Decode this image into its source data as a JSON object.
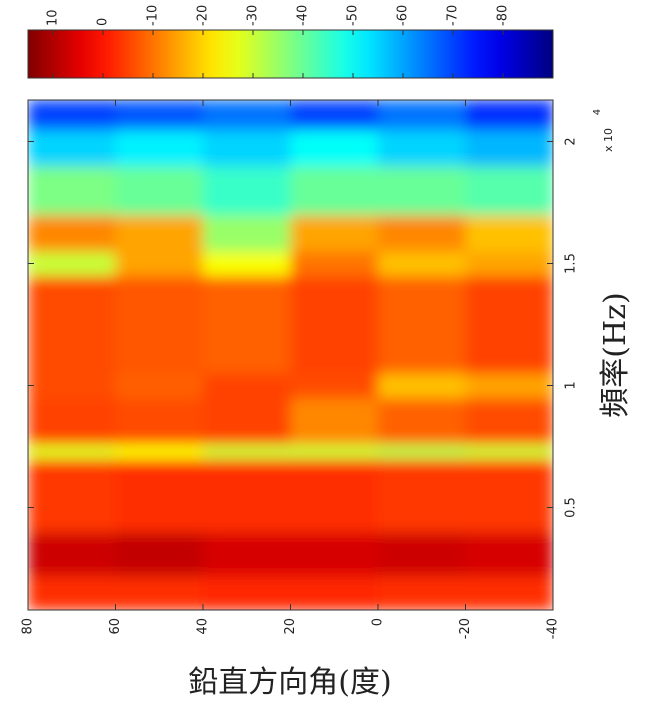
{
  "chart_data": {
    "type": "heatmap",
    "xlabel": "頻率(Hz)",
    "ylabel": "鉛直方向角(度)",
    "x_exponent": "x 10",
    "x_exponent_power": "4",
    "xlim": [
      0.08,
      2.17
    ],
    "xticks": [
      0.5,
      1,
      1.5,
      2
    ],
    "ylim": [
      80,
      -40
    ],
    "yticks": [
      80,
      60,
      40,
      20,
      0,
      -20,
      -40
    ],
    "bins": [
      0.08,
      0.22,
      0.4,
      0.7,
      0.76,
      0.95,
      1.05,
      1.45,
      1.55,
      1.7,
      1.9,
      2.05,
      2.17
    ],
    "angle_edges": [
      80,
      60,
      40,
      20,
      0,
      -20,
      -40
    ],
    "values": [
      [
        -3,
        -3,
        -2,
        -2,
        -3,
        -3
      ],
      [
        7,
        8,
        6,
        6,
        7,
        6
      ],
      [
        -4,
        -3,
        -3,
        -3,
        -4,
        -4
      ],
      [
        -28,
        -25,
        -30,
        -30,
        -32,
        -30
      ],
      [
        -5,
        -6,
        -5,
        -12,
        -8,
        -6
      ],
      [
        -6,
        -8,
        -5,
        -6,
        -18,
        -15
      ],
      [
        -6,
        -7,
        -8,
        -5,
        -8,
        -5
      ],
      [
        -30,
        -15,
        -25,
        -10,
        -18,
        -15
      ],
      [
        -12,
        -15,
        -35,
        -15,
        -12,
        -18
      ],
      [
        -38,
        -40,
        -45,
        -40,
        -40,
        -42
      ],
      [
        -55,
        -52,
        -55,
        -50,
        -55,
        -58
      ],
      [
        -70,
        -68,
        -65,
        -70,
        -65,
        -72
      ]
    ],
    "colormap": "jet",
    "clim": [
      15,
      -90
    ],
    "cticks": [
      10,
      0,
      -10,
      -20,
      -30,
      -40,
      -50,
      -60,
      -70,
      -80
    ]
  }
}
